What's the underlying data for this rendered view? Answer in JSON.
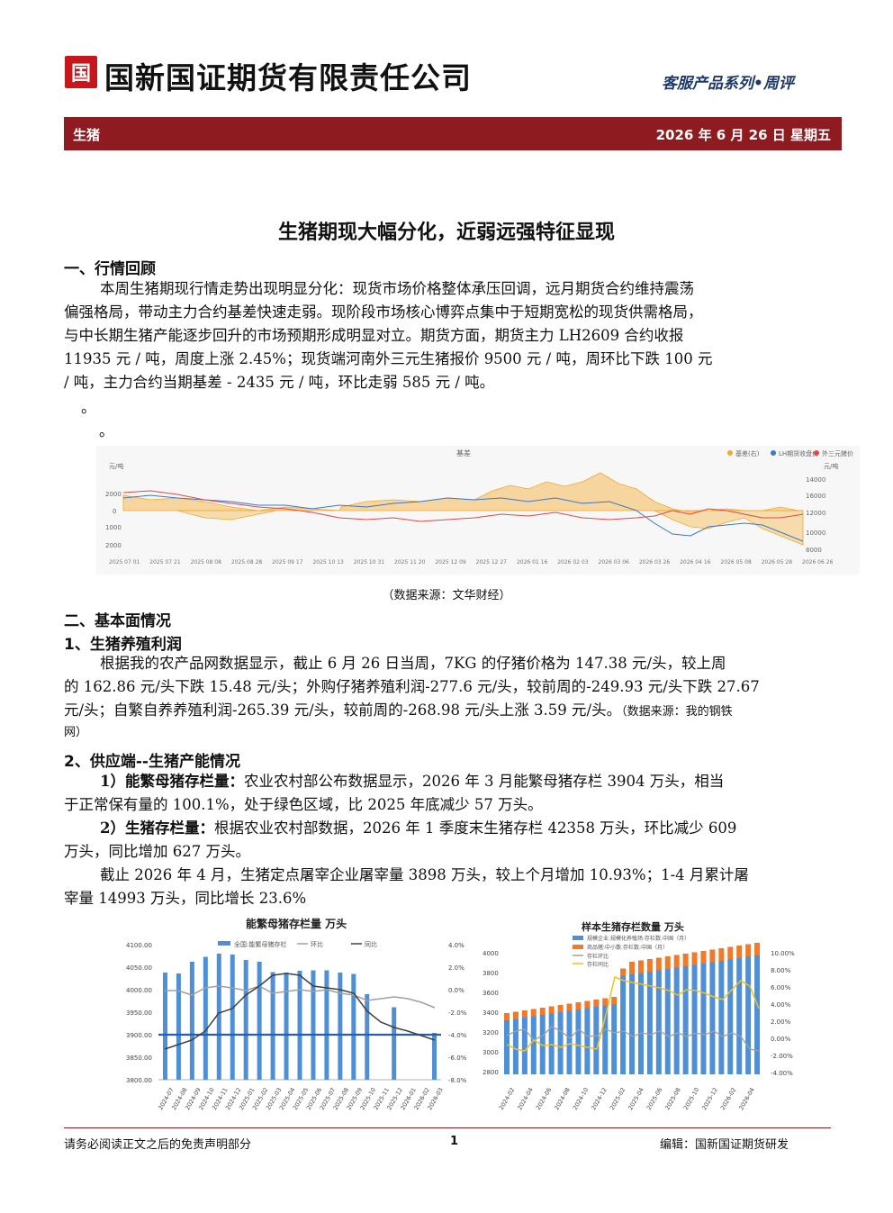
{
  "header": {
    "logo_glyph": "国",
    "company_name": "国新国证期货有限责任公司",
    "series": "客服产品系列•周评",
    "category": "生猪",
    "date": "2026 年 6 月 26 日   星期五"
  },
  "title": "生猪期现大幅分化，近弱远强特征显现",
  "section1": {
    "heading": "一、行情回顾",
    "lines": [
      "本周生猪期现行情走势出现明显分化：现货市场价格整体承压回调，远月期货合约维持震荡",
      "偏强格局，带动主力合约基差快速走弱。现阶段市场核心博弈点集中于短期宽松的现货供需格局，",
      "与中长期生猪产能逐步回升的市场预期形成明显对立。期货方面，期货主力 LH2609 合约收报",
      "11935 元 / 吨，周度上涨 2.45%；现货端河南外三元生猪报价 9500 元 / 吨，周环比下跌 100 元",
      "/ 吨，主力合约当期基差 - 2435 元 / 吨，环比走弱 585 元 / 吨。"
    ],
    "stray1": "。",
    "stray2": "。",
    "chart_source": "（数据来源：文华财经）"
  },
  "section2": {
    "heading": "二、基本面情况",
    "sub1": "1、生猪养殖利润",
    "sub1_lines": [
      "根据我的农产品网数据显示，截止 6 月 26 日当周，7KG 的仔猪价格为 147.38 元/头，较上周",
      "的 162.86 元/头下跌 15.48 元/头；外购仔猪养殖利润-277.6 元/头，较前周的-249.93 元/头下跌 27.67",
      "元/头；自繁自养养殖利润-265.39 元/头，较前周的-268.98 元/头上涨 3.59 元/头。"
    ],
    "sub1_source": "（数据来源：我的钢铁",
    "sub1_source2": "网）",
    "sub2": "2、供应端--生猪产能情况",
    "item1_label": "1）能繁母猪存栏量：",
    "item1_lines": [
      "农业农村部公布数据显示，2026 年 3 月能繁母猪存栏 3904 万头，相当",
      "于正常保有量的 100.1%，处于绿色区域，比 2025 年底减少 57 万头。"
    ],
    "item2_label": "2）生猪存栏量：",
    "item2_lines": [
      "根据农业农村部数据，2026 年 1 季度末生猪存栏 42358 万头，环比减少 609",
      "万头，同比增加 627 万头。"
    ],
    "item3_lines": [
      "截止 2026 年 4 月，生猪定点屠宰企业屠宰量 3898 万头，较上个月增加 10.93%；1-4 月累计屠",
      "宰量 14993 万头，同比增长 23.6%"
    ]
  },
  "chart_data": [
    {
      "type": "line",
      "title": "基差",
      "legend": [
        "基差(右)",
        "LH期货收盘价",
        "外三元猪价"
      ],
      "legend_placement": "top-right",
      "y_left_ticks": [
        "元/吨",
        "2000",
        "0",
        "1000",
        "2000"
      ],
      "y_right_ticks": [
        "元/吨",
        "14000",
        "16000",
        "12000",
        "10000",
        "8000"
      ],
      "x_ticks": [
        "2025 07 01",
        "2025 07 21",
        "2025 08 08",
        "2025 08 28",
        "2025 09 17",
        "2025 10 13",
        "2025 10 31",
        "2025 11 20",
        "2025 12 09",
        "2025 12 27",
        "2026 01 16",
        "2026 02 03",
        "2026 03 06",
        "2026 03 26",
        "2026 04 16",
        "2026 05 08",
        "2026 05 28",
        "2026 06 26"
      ],
      "colors": {
        "basis": "#f0a830",
        "futures": "#3a78c8",
        "spot": "#e04848"
      }
    },
    {
      "type": "bar",
      "title": "能繁母猪存栏量  万头",
      "legend": [
        "全国:能繁母猪存栏",
        "环比",
        "同比"
      ],
      "categories": [
        "2024-07",
        "2024-08",
        "2024-09",
        "2024-10",
        "2024-11",
        "2024-12",
        "2025-01",
        "2025-02",
        "2025-03",
        "2025-04",
        "2025-05",
        "2025-06",
        "2025-07",
        "2025-08",
        "2025-09",
        "2025-10",
        "2025-11",
        "2025-12",
        "2026-01",
        "2026-02",
        "2026-03"
      ],
      "values": [
        4038,
        4036,
        4062,
        4073,
        4080,
        4078,
        4066,
        4062,
        4039,
        4038,
        4042,
        4043,
        4043,
        4038,
        4035,
        3990,
        null,
        3961,
        null,
        null,
        3904
      ],
      "y_left_ticks": [
        "4100.00",
        "4050.00",
        "4000.00",
        "3950.00",
        "3900.00",
        "3850.00",
        "3800.00"
      ],
      "y_right_ticks": [
        "4.0%",
        "2.0%",
        "0.0%",
        "-2.0%",
        "-4.0%",
        "-6.0%",
        "-8.0%"
      ],
      "colors": {
        "bar": "#4f8fd6",
        "mom": "#a0a0a0",
        "yoy": "#404040",
        "ref": "#2a5fa8"
      }
    },
    {
      "type": "bar",
      "title": "样本生猪存栏数量  万头",
      "legend": [
        "规模企业:规模化养殖场:存栏数:中国（月）",
        "商品猪:中小散:存栏数:中国（月）",
        "存栏环比",
        "存栏同比"
      ],
      "y_left_ticks": [
        "4000",
        "3800",
        "3600",
        "3400",
        "3200",
        "3000",
        "2800"
      ],
      "y_right_ticks": [
        "10.00%",
        "8.00%",
        "6.00%",
        "4.00%",
        "2.00%",
        "0.00%",
        "-2.00%",
        "-4.00%"
      ],
      "x_ticks": [
        "2024-02",
        "2024-04",
        "2024-06",
        "2024-08",
        "2024-10",
        "2024-12",
        "2025-02",
        "2025-04",
        "2025-06",
        "2025-08",
        "2025-10",
        "2025-12",
        "2026-02",
        "2026-04"
      ],
      "colors": {
        "large": "#4f8fd6",
        "small": "#f07a2a",
        "mom": "#a0a0a0",
        "yoy": "#f0c020"
      }
    }
  ],
  "footer": {
    "left": "请务必阅读正文之后的免责声明部分",
    "page": "1",
    "right": "编辑：国新国证期货研发"
  }
}
